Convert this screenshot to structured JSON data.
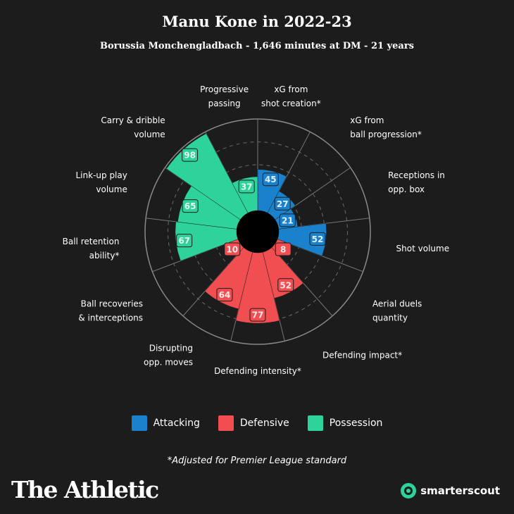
{
  "title": "Manu Kone in 2022-23",
  "subtitle": "Borussia Monchengladbach - 1,646 minutes at DM - 21 years",
  "footnote": "*Adjusted for Premier League standard",
  "brand": "The Athletic",
  "source": "smarterscout",
  "colors": {
    "background": "#1c1c1c",
    "Attacking": "#1a82cc",
    "Defensive": "#f04e51",
    "Possession": "#2ed29b"
  },
  "legend": [
    {
      "label": "Attacking",
      "color": "#1a82cc"
    },
    {
      "label": "Defensive",
      "color": "#f04e51"
    },
    {
      "label": "Possession",
      "color": "#2ed29b"
    }
  ],
  "chart_data": {
    "type": "polar-bar",
    "title": "Manu Kone in 2022-23",
    "range": [
      0,
      100
    ],
    "grid": true,
    "categories": [
      {
        "label": [
          "xG from",
          "shot creation*"
        ],
        "group": "Attacking",
        "value": 45
      },
      {
        "label": [
          "xG from",
          "ball progression*"
        ],
        "group": "Attacking",
        "value": 27
      },
      {
        "label": [
          "Receptions in",
          "opp. box"
        ],
        "group": "Attacking",
        "value": 21
      },
      {
        "label": [
          "Shot volume"
        ],
        "group": "Attacking",
        "value": 52
      },
      {
        "label": [
          "Aerial duels",
          "quantity"
        ],
        "group": "Defensive",
        "value": 8
      },
      {
        "label": [
          "Defending impact*"
        ],
        "group": "Defensive",
        "value": 52
      },
      {
        "label": [
          "Defending intensity*"
        ],
        "group": "Defensive",
        "value": 77
      },
      {
        "label": [
          "Disrupting",
          "opp. moves"
        ],
        "group": "Defensive",
        "value": 64
      },
      {
        "label": [
          "Ball recoveries",
          "& interceptions"
        ],
        "group": "Defensive",
        "value": 10
      },
      {
        "label": [
          "Ball retention",
          "ability*"
        ],
        "group": "Possession",
        "value": 67
      },
      {
        "label": [
          "Link-up play",
          "volume"
        ],
        "group": "Possession",
        "value": 65
      },
      {
        "label": [
          "Carry & dribble",
          "volume"
        ],
        "group": "Possession",
        "value": 98
      },
      {
        "label": [
          "Progressive",
          "passing"
        ],
        "group": "Possession",
        "value": 37
      }
    ]
  }
}
